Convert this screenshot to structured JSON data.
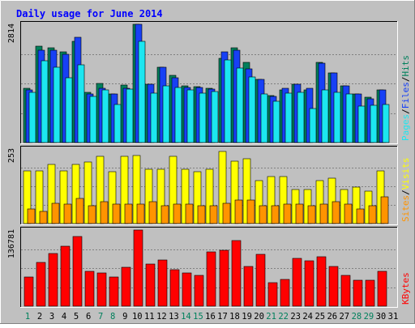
{
  "chart_data": {
    "type": "bar",
    "title": "Daily usage for June 2014",
    "days": [
      "1",
      "2",
      "3",
      "4",
      "5",
      "6",
      "7",
      "8",
      "9",
      "10",
      "11",
      "12",
      "13",
      "14",
      "15",
      "16",
      "17",
      "18",
      "19",
      "20",
      "21",
      "22",
      "23",
      "24",
      "25",
      "26",
      "27",
      "28",
      "29",
      "30",
      "31"
    ],
    "weekend_days": [
      "1",
      "7",
      "8",
      "14",
      "15",
      "21",
      "22",
      "28",
      "29"
    ],
    "panels": [
      {
        "id": "hits",
        "max_label": "2814",
        "ymax": 2814,
        "legend": [
          "Pages",
          "Files",
          "Hits"
        ],
        "series": [
          {
            "name": "Hits",
            "color": "#00805c",
            "values": [
              1300,
              2300,
              2250,
              2150,
              2400,
              1200,
              1400,
              1150,
              1360,
              2814,
              1380,
              1800,
              1600,
              1350,
              1330,
              1300,
              2000,
              2250,
              1900,
              1500,
              1120,
              1260,
              1380,
              1260,
              1900,
              1650,
              1350,
              1150,
              1070,
              1250,
              0
            ]
          },
          {
            "name": "Files",
            "color": "#1740f5",
            "values": [
              1250,
              2200,
              2200,
              2100,
              2500,
              1150,
              1300,
              1150,
              1300,
              2814,
              1380,
              1800,
              1550,
              1320,
              1310,
              1280,
              2150,
              2200,
              1750,
              1500,
              1100,
              1300,
              1380,
              1300,
              1880,
              1650,
              1350,
              1150,
              1050,
              1250,
              0
            ]
          },
          {
            "name": "Pages",
            "color": "#1ce6f0",
            "values": [
              1200,
              1950,
              1800,
              1550,
              1850,
              1100,
              1250,
              900,
              1270,
              2400,
              1180,
              1350,
              1320,
              1250,
              1170,
              1220,
              1960,
              1780,
              1560,
              1150,
              980,
              1170,
              1200,
              800,
              1260,
              1200,
              1150,
              860,
              880,
              900,
              0
            ]
          }
        ]
      },
      {
        "id": "visits",
        "max_label": "253",
        "ymax": 253,
        "legend": [
          "Sites",
          "Visits"
        ],
        "series": [
          {
            "name": "Visits",
            "color": "#ffff00",
            "values": [
              180,
              180,
              200,
              180,
              202,
              210,
              229,
              175,
              228,
              230,
              185,
              185,
              229,
              185,
              175,
              185,
              245,
              211,
              221,
              145,
              160,
              160,
              115,
              115,
              146,
              155,
              115,
              125,
              110,
              180,
              0
            ]
          },
          {
            "name": "Sites",
            "color": "#ff9400",
            "values": [
              50,
              40,
              70,
              65,
              85,
              60,
              75,
              65,
              65,
              65,
              75,
              60,
              65,
              65,
              60,
              60,
              70,
              80,
              80,
              60,
              60,
              65,
              65,
              60,
              65,
              75,
              65,
              50,
              60,
              90,
              0
            ]
          }
        ]
      },
      {
        "id": "kbytes",
        "max_label": "136781",
        "ymax": 136781,
        "legend": [
          "KBytes"
        ],
        "series": [
          {
            "name": "KBytes",
            "color": "#ff0000",
            "values": [
              52000,
              78000,
              95000,
              108000,
              125000,
              63000,
              60000,
              52000,
              70000,
              136781,
              75000,
              83000,
              65000,
              60000,
              55000,
              97000,
              100000,
              118000,
              71000,
              93000,
              42000,
              48000,
              86000,
              82000,
              89000,
              72000,
              55000,
              46000,
              47000,
              62000,
              0
            ]
          }
        ]
      }
    ]
  }
}
